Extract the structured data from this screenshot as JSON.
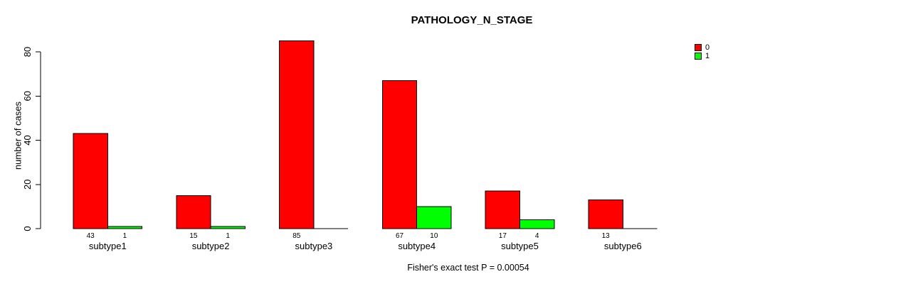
{
  "chart_data": {
    "type": "bar",
    "title": "PATHOLOGY_N_STAGE",
    "ylabel": "number of cases",
    "xlabel": "",
    "categories": [
      "subtype1",
      "subtype2",
      "subtype3",
      "subtype4",
      "subtype5",
      "subtype6"
    ],
    "series": [
      {
        "name": "0",
        "color": "#FF0000",
        "values": [
          43,
          15,
          85,
          67,
          17,
          13
        ],
        "bar_labels": [
          "43",
          "15",
          "85",
          "67",
          "17",
          "13"
        ]
      },
      {
        "name": "1",
        "color": "#00FF00",
        "values": [
          1,
          1,
          0,
          10,
          4,
          0
        ],
        "bar_labels": [
          "1",
          "1",
          "",
          "10",
          "4",
          ""
        ]
      }
    ],
    "yticks": [
      0,
      20,
      40,
      60,
      80
    ],
    "ylim": [
      0,
      85
    ],
    "grid": false,
    "legend_position": "top-right",
    "bar_border_color": "#000000",
    "footnote": "Fisher's exact test P = 0.00054"
  }
}
